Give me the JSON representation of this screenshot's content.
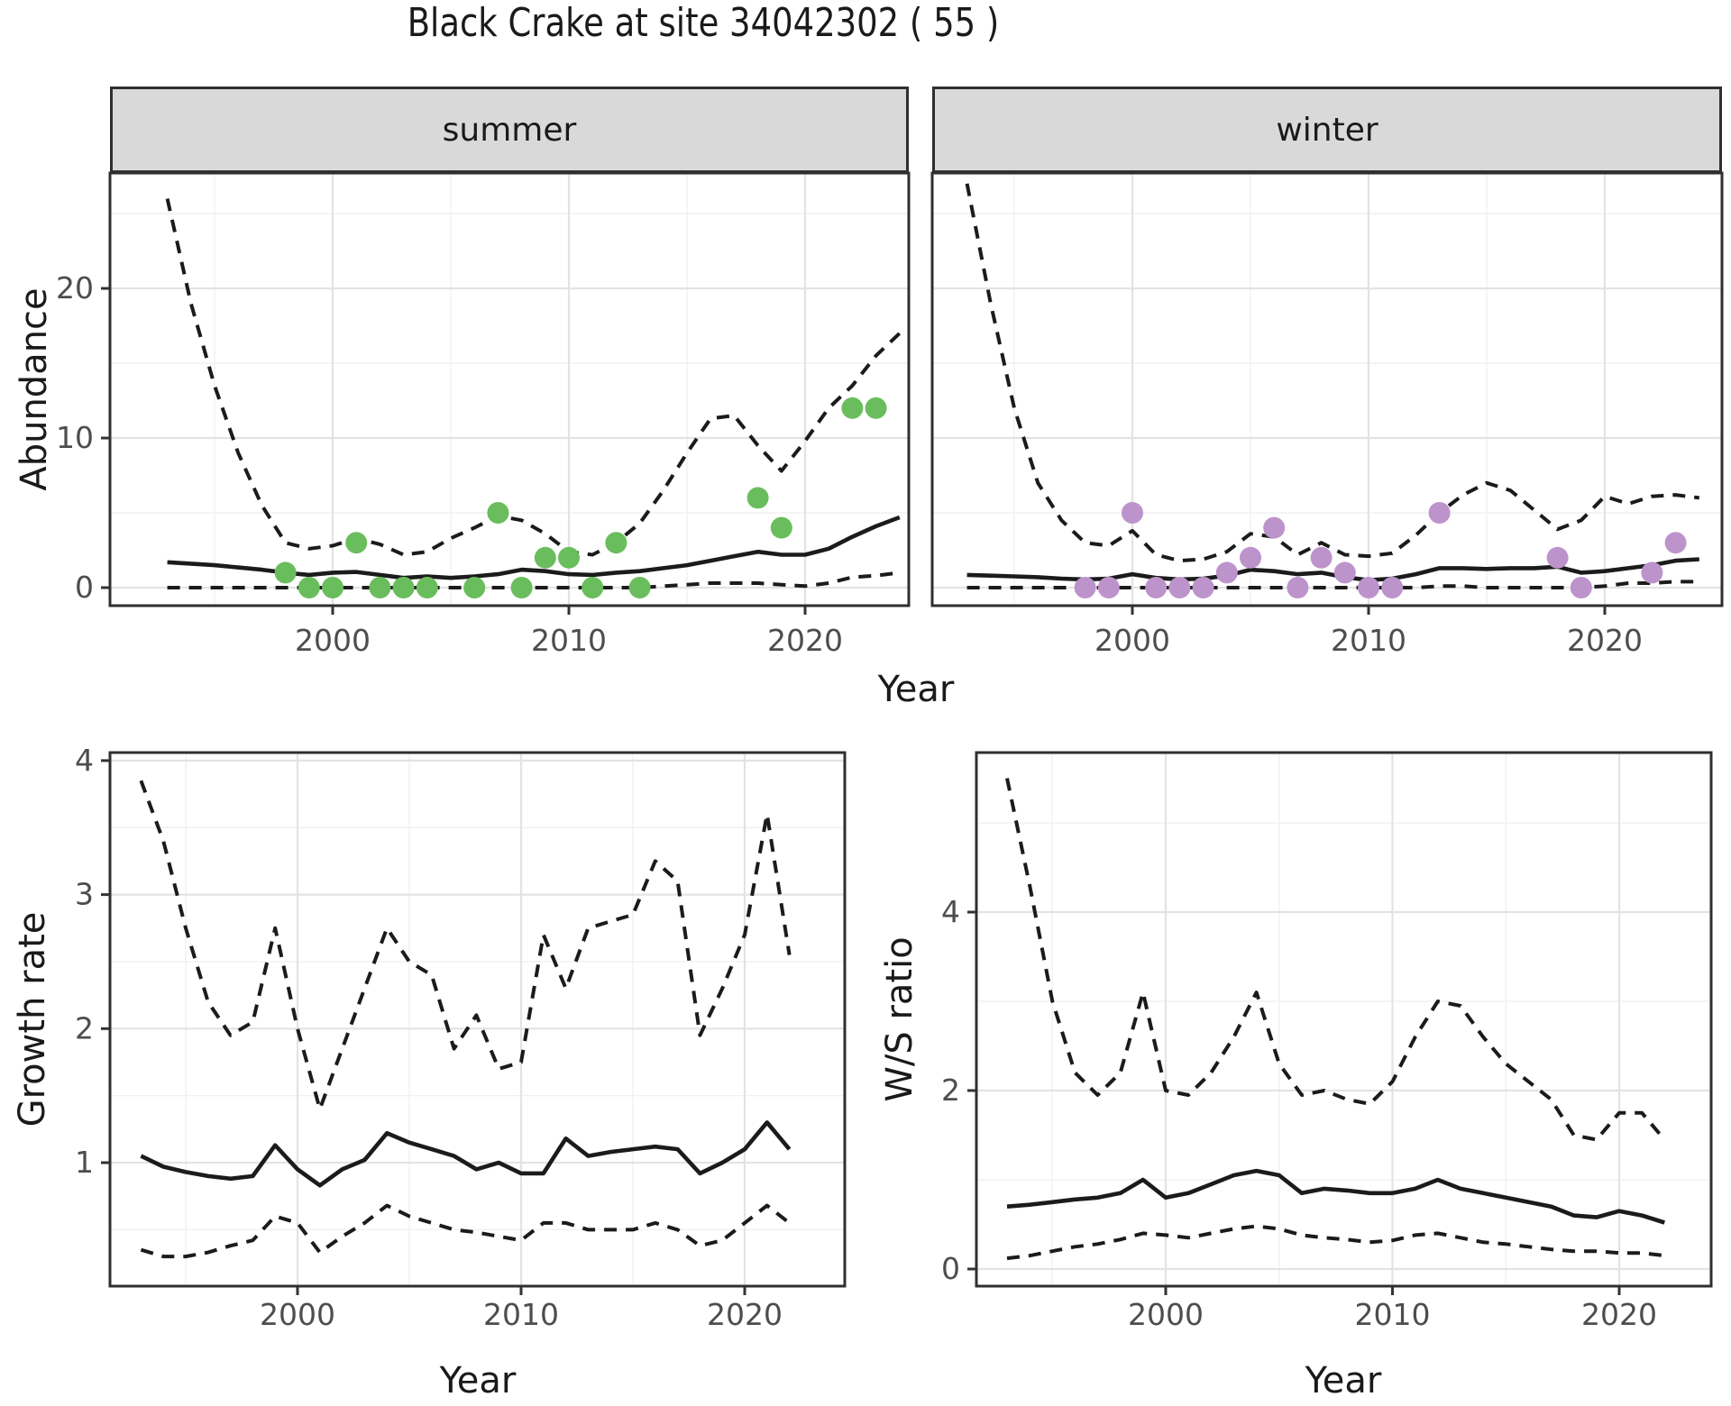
{
  "title": "Black Crake at site 34042302 ( 55 )",
  "strips": {
    "summer": "summer",
    "winter": "winter"
  },
  "axis_titles": {
    "abundance": "Abundance",
    "year": "Year",
    "growth_rate": "Growth rate",
    "ws_ratio": "W/S ratio"
  },
  "colors": {
    "background": "#ffffff",
    "line": "#1b1b1b",
    "grid_major": "#e3e3e3",
    "grid_minor": "#f1f1f1",
    "strip_bg": "#d9d9d9",
    "panel_border": "#2f2f2f",
    "tick_mark": "#333333",
    "tick_label": "#4d4d4d",
    "summer_point": "#6abd5c",
    "winter_point": "#bd93cc"
  },
  "chart_data": [
    {
      "id": "abundance_summer",
      "type": "line",
      "facet": "summer",
      "xlabel": "Year",
      "ylabel": "Abundance",
      "x": [
        1993,
        1994,
        1995,
        1996,
        1997,
        1998,
        1999,
        2000,
        2001,
        2002,
        2003,
        2004,
        2005,
        2006,
        2007,
        2008,
        2009,
        2010,
        2011,
        2012,
        2013,
        2014,
        2015,
        2016,
        2017,
        2018,
        2019,
        2020,
        2021,
        2022,
        2023,
        2024
      ],
      "series": [
        {
          "name": "median",
          "style": "solid",
          "values": [
            1.7,
            1.6,
            1.5,
            1.35,
            1.2,
            1.0,
            0.85,
            1.0,
            1.05,
            0.85,
            0.65,
            0.75,
            0.65,
            0.75,
            0.9,
            1.2,
            1.1,
            0.9,
            0.85,
            1.0,
            1.1,
            1.3,
            1.5,
            1.8,
            2.1,
            2.4,
            2.2,
            2.2,
            2.6,
            3.4,
            4.1,
            4.7
          ]
        },
        {
          "name": "upper_ci",
          "style": "dashed",
          "values": [
            26,
            19,
            13.5,
            9,
            5.5,
            3.0,
            2.6,
            2.8,
            3.3,
            2.9,
            2.2,
            2.4,
            3.3,
            4.0,
            4.8,
            4.5,
            3.6,
            2.4,
            2.2,
            3.0,
            4.3,
            6.5,
            9.0,
            11.3,
            11.5,
            9.5,
            7.8,
            9.8,
            12.0,
            13.5,
            15.5,
            17.0
          ]
        },
        {
          "name": "lower_ci",
          "style": "dashed",
          "values": [
            0,
            0,
            0,
            0,
            0,
            0,
            0,
            0,
            0,
            0,
            0,
            0,
            0,
            0,
            0,
            0,
            0,
            0,
            0,
            0,
            0,
            0.1,
            0.2,
            0.3,
            0.3,
            0.3,
            0.2,
            0.1,
            0.3,
            0.7,
            0.8,
            1.0
          ]
        }
      ],
      "points": {
        "name": "observed_counts",
        "color_key": "summer_point",
        "x": [
          1998,
          1999,
          2000,
          2001,
          2002,
          2003,
          2004,
          2006,
          2007,
          2008,
          2009,
          2010,
          2011,
          2012,
          2013,
          2018,
          2019,
          2022,
          2023
        ],
        "y": [
          1,
          0,
          0,
          3,
          0,
          0,
          0,
          0,
          5,
          0,
          2,
          2,
          0,
          3,
          0,
          6,
          4,
          12,
          12
        ]
      },
      "xticks": [
        2000,
        2010,
        2020
      ],
      "xminor": [
        1995,
        2005,
        2015
      ],
      "yticks": [
        0,
        10,
        20
      ],
      "yminor": [
        5,
        15,
        25
      ],
      "xlim": [
        1990.6,
        2024.4
      ],
      "ylim": [
        -1.2,
        27.7
      ],
      "grid": true,
      "legend": "none"
    },
    {
      "id": "abundance_winter",
      "type": "line",
      "facet": "winter",
      "xlabel": "Year",
      "ylabel": "Abundance",
      "x": [
        1993,
        1994,
        1995,
        1996,
        1997,
        1998,
        1999,
        2000,
        2001,
        2002,
        2003,
        2004,
        2005,
        2006,
        2007,
        2008,
        2009,
        2010,
        2011,
        2012,
        2013,
        2014,
        2015,
        2016,
        2017,
        2018,
        2019,
        2020,
        2021,
        2022,
        2023,
        2024
      ],
      "series": [
        {
          "name": "median",
          "style": "solid",
          "values": [
            0.85,
            0.8,
            0.75,
            0.7,
            0.6,
            0.55,
            0.6,
            0.9,
            0.65,
            0.55,
            0.6,
            0.8,
            1.2,
            1.1,
            0.9,
            1.0,
            0.7,
            0.5,
            0.6,
            0.9,
            1.3,
            1.3,
            1.25,
            1.3,
            1.3,
            1.4,
            1.0,
            1.1,
            1.3,
            1.5,
            1.8,
            1.9
          ]
        },
        {
          "name": "upper_ci",
          "style": "dashed",
          "values": [
            27,
            19,
            12,
            7,
            4.5,
            3.0,
            2.8,
            3.8,
            2.2,
            1.8,
            1.9,
            2.4,
            3.6,
            3.4,
            2.2,
            3.0,
            2.2,
            2.1,
            2.3,
            3.5,
            5.0,
            6.2,
            7.0,
            6.5,
            5.2,
            3.9,
            4.5,
            6.1,
            5.6,
            6.1,
            6.2,
            6.0
          ]
        },
        {
          "name": "lower_ci",
          "style": "dashed",
          "values": [
            0,
            0,
            0,
            0,
            0,
            0,
            0,
            0,
            0,
            0,
            0,
            0,
            0,
            0,
            0,
            0,
            0,
            0,
            0,
            0,
            0.1,
            0.1,
            0,
            0,
            0,
            0,
            0,
            0.1,
            0.3,
            0.3,
            0.4,
            0.4
          ]
        }
      ],
      "points": {
        "name": "observed_counts",
        "color_key": "winter_point",
        "x": [
          1998,
          1999,
          2000,
          2001,
          2002,
          2003,
          2004,
          2005,
          2006,
          2007,
          2008,
          2009,
          2010,
          2011,
          2013,
          2018,
          2019,
          2022,
          2023
        ],
        "y": [
          0,
          0,
          5,
          0,
          0,
          0,
          1,
          2,
          4,
          0,
          2,
          1,
          0,
          0,
          5,
          2,
          0,
          1,
          3
        ]
      },
      "xticks": [
        2000,
        2010,
        2020
      ],
      "xminor": [
        1995,
        2005,
        2015
      ],
      "yticks": [
        0,
        10,
        20
      ],
      "yminor": [
        5,
        15,
        25
      ],
      "xlim": [
        1991.5,
        2025.0
      ],
      "ylim": [
        -1.2,
        27.7
      ],
      "grid": true,
      "legend": "none"
    },
    {
      "id": "growth_rate",
      "type": "line",
      "facet": null,
      "xlabel": "Year",
      "ylabel": "Growth rate",
      "x": [
        1993,
        1994,
        1995,
        1996,
        1997,
        1998,
        1999,
        2000,
        2001,
        2002,
        2003,
        2004,
        2005,
        2006,
        2007,
        2008,
        2009,
        2010,
        2011,
        2012,
        2013,
        2014,
        2015,
        2016,
        2017,
        2018,
        2019,
        2020,
        2021,
        2022
      ],
      "series": [
        {
          "name": "median",
          "style": "solid",
          "values": [
            1.05,
            0.97,
            0.93,
            0.9,
            0.88,
            0.9,
            1.13,
            0.95,
            0.83,
            0.95,
            1.02,
            1.22,
            1.15,
            1.1,
            1.05,
            0.95,
            1.0,
            0.92,
            0.92,
            1.18,
            1.05,
            1.08,
            1.1,
            1.12,
            1.1,
            0.92,
            1.0,
            1.1,
            1.3,
            1.1
          ]
        },
        {
          "name": "upper_ci",
          "style": "dashed",
          "values": [
            3.85,
            3.4,
            2.75,
            2.2,
            1.95,
            2.05,
            2.75,
            2.0,
            1.4,
            1.85,
            2.3,
            2.75,
            2.5,
            2.4,
            1.85,
            2.1,
            1.7,
            1.75,
            2.7,
            2.3,
            2.75,
            2.8,
            2.85,
            3.25,
            3.1,
            1.95,
            2.3,
            2.7,
            3.6,
            2.55
          ]
        },
        {
          "name": "lower_ci",
          "style": "dashed",
          "values": [
            0.35,
            0.3,
            0.3,
            0.33,
            0.38,
            0.42,
            0.6,
            0.55,
            0.33,
            0.45,
            0.55,
            0.68,
            0.6,
            0.55,
            0.5,
            0.48,
            0.45,
            0.42,
            0.55,
            0.55,
            0.5,
            0.5,
            0.5,
            0.55,
            0.5,
            0.38,
            0.42,
            0.55,
            0.68,
            0.55
          ]
        }
      ],
      "points": null,
      "xticks": [
        2000,
        2010,
        2020
      ],
      "xminor": [
        1995,
        2005,
        2015
      ],
      "yticks": [
        1,
        2,
        3,
        4
      ],
      "yminor": [
        0.5,
        1.5,
        2.5,
        3.5
      ],
      "xlim": [
        1991.6,
        2024.5
      ],
      "ylim": [
        0.08,
        4.06
      ],
      "grid": true,
      "legend": "none"
    },
    {
      "id": "ws_ratio",
      "type": "line",
      "facet": null,
      "xlabel": "Year",
      "ylabel": "W/S ratio",
      "x": [
        1993,
        1994,
        1995,
        1996,
        1997,
        1998,
        1999,
        2000,
        2001,
        2002,
        2003,
        2004,
        2005,
        2006,
        2007,
        2008,
        2009,
        2010,
        2011,
        2012,
        2013,
        2014,
        2015,
        2016,
        2017,
        2018,
        2019,
        2020,
        2021,
        2022
      ],
      "series": [
        {
          "name": "median",
          "style": "solid",
          "values": [
            0.7,
            0.72,
            0.75,
            0.78,
            0.8,
            0.85,
            1.0,
            0.8,
            0.85,
            0.95,
            1.05,
            1.1,
            1.05,
            0.85,
            0.9,
            0.88,
            0.85,
            0.85,
            0.9,
            1.0,
            0.9,
            0.85,
            0.8,
            0.75,
            0.7,
            0.6,
            0.58,
            0.65,
            0.6,
            0.52
          ]
        },
        {
          "name": "upper_ci",
          "style": "dashed",
          "values": [
            5.5,
            4.3,
            3.0,
            2.2,
            1.95,
            2.2,
            3.1,
            2.0,
            1.95,
            2.2,
            2.6,
            3.1,
            2.3,
            1.95,
            2.0,
            1.9,
            1.85,
            2.1,
            2.6,
            3.0,
            2.95,
            2.6,
            2.3,
            2.1,
            1.9,
            1.5,
            1.45,
            1.75,
            1.75,
            1.45
          ]
        },
        {
          "name": "lower_ci",
          "style": "dashed",
          "values": [
            0.12,
            0.15,
            0.2,
            0.25,
            0.28,
            0.33,
            0.4,
            0.38,
            0.35,
            0.4,
            0.45,
            0.48,
            0.45,
            0.38,
            0.35,
            0.33,
            0.3,
            0.32,
            0.38,
            0.4,
            0.35,
            0.3,
            0.28,
            0.25,
            0.22,
            0.2,
            0.2,
            0.18,
            0.18,
            0.15
          ]
        }
      ],
      "points": null,
      "xticks": [
        2000,
        2010,
        2020
      ],
      "xminor": [
        1995,
        2005,
        2015
      ],
      "yticks": [
        0,
        2,
        4
      ],
      "yminor": [
        1,
        3,
        5
      ],
      "xlim": [
        1991.6,
        2024.1
      ],
      "ylim": [
        -0.19,
        5.79
      ],
      "grid": true,
      "legend": "none"
    }
  ]
}
